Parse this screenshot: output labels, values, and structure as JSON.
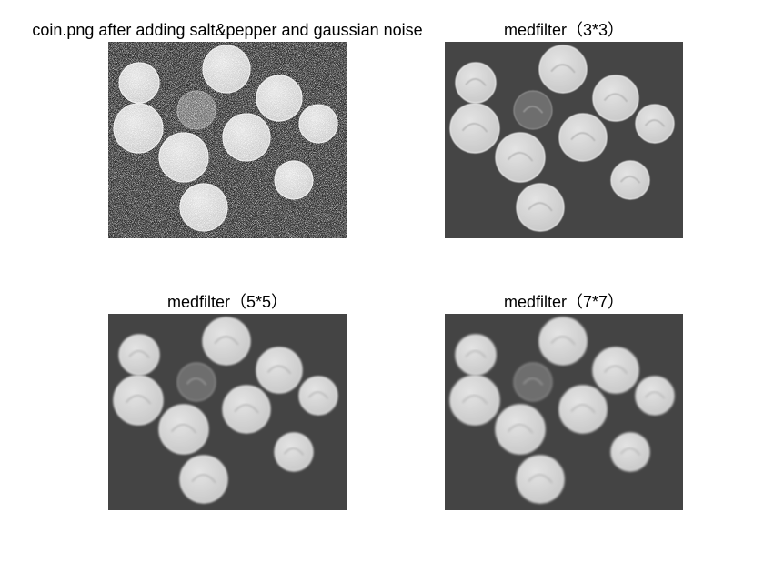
{
  "figure": {
    "panels": [
      {
        "title": "coin.png after adding salt&pepper and gaussian noise",
        "background": "#2a2a2a",
        "style": "noisy"
      },
      {
        "title": "medfilter（3*3）",
        "background": "#454545",
        "style": "filtered-3x3"
      },
      {
        "title": "medfilter（5*5）",
        "background": "#444444",
        "style": "filtered-5x5"
      },
      {
        "title": "medfilter（7*7）",
        "background": "#444444",
        "style": "filtered-7x7"
      }
    ],
    "coin_tone": "#c8c8c8",
    "dark_coin_tone": "#6e6e6e"
  }
}
